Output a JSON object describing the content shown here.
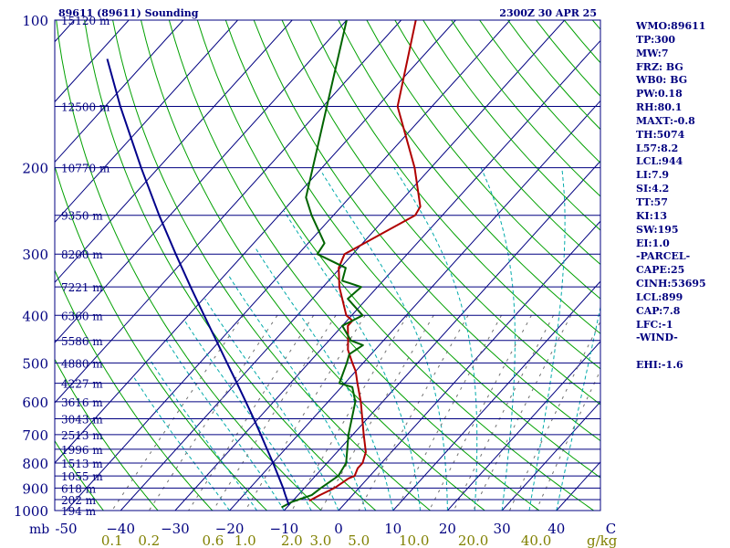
{
  "header": {
    "station_title": "89611 (89611) Sounding",
    "valid_time": "2300Z 30 APR 25"
  },
  "axes": {
    "p_unit": "mb",
    "mixing_ratio_unit": "g/kg"
  },
  "chart_data": {
    "type": "line",
    "diagram": "skew-t log-p",
    "grid": true,
    "pressure_range_mb": [
      100,
      1000
    ],
    "temperature_range_c": [
      -50,
      50
    ],
    "pressure_ticks": [
      {
        "p": 100,
        "label": "100"
      },
      {
        "p": 200,
        "label": "200"
      },
      {
        "p": 300,
        "label": "300"
      },
      {
        "p": 400,
        "label": "400"
      },
      {
        "p": 500,
        "label": "500"
      },
      {
        "p": 600,
        "label": "600"
      },
      {
        "p": 700,
        "label": "700"
      },
      {
        "p": 800,
        "label": "800"
      },
      {
        "p": 900,
        "label": "900"
      },
      {
        "p": 1000,
        "label": "1000"
      }
    ],
    "temperature_ticks": [
      {
        "t": -50,
        "label": "-50"
      },
      {
        "t": -40,
        "label": "−40"
      },
      {
        "t": -30,
        "label": "−30"
      },
      {
        "t": -20,
        "label": "−20"
      },
      {
        "t": -10,
        "label": "−10"
      },
      {
        "t": 0,
        "label": "0"
      },
      {
        "t": 10,
        "label": "10"
      },
      {
        "t": 20,
        "label": "20"
      },
      {
        "t": 30,
        "label": "30"
      },
      {
        "t": 40,
        "label": "40"
      },
      {
        "t": 50,
        "label": "C"
      }
    ],
    "mixing_ratio_ticks": [
      {
        "w": 0.1,
        "label": "0.1"
      },
      {
        "w": 0.2,
        "label": "0.2"
      },
      {
        "w": 0.6,
        "label": "0.6"
      },
      {
        "w": 1.0,
        "label": "1.0"
      },
      {
        "w": 2.0,
        "label": "2.0"
      },
      {
        "w": 3.0,
        "label": "3.0"
      },
      {
        "w": 5.0,
        "label": "5.0"
      },
      {
        "w": 10.0,
        "label": "10.0"
      },
      {
        "w": 20.0,
        "label": "20.0"
      },
      {
        "w": 40.0,
        "label": "40.0"
      }
    ],
    "height_labels": [
      {
        "p": 100,
        "label": "15120 m"
      },
      {
        "p": 150,
        "label": "12500 m"
      },
      {
        "p": 200,
        "label": "10770 m"
      },
      {
        "p": 250,
        "label": "9350 m"
      },
      {
        "p": 300,
        "label": "8200 m"
      },
      {
        "p": 350,
        "label": "7221 m"
      },
      {
        "p": 400,
        "label": "6360 m"
      },
      {
        "p": 450,
        "label": "5586 m"
      },
      {
        "p": 500,
        "label": "4880 m"
      },
      {
        "p": 550,
        "label": "4227 m"
      },
      {
        "p": 600,
        "label": "3616 m"
      },
      {
        "p": 650,
        "label": "3043 m"
      },
      {
        "p": 700,
        "label": "2513 m"
      },
      {
        "p": 750,
        "label": "1996 m"
      },
      {
        "p": 800,
        "label": "1513 m"
      },
      {
        "p": 850,
        "label": "1055 m"
      },
      {
        "p": 900,
        "label": "618 m"
      },
      {
        "p": 950,
        "label": "202 m"
      },
      {
        "p": 1000,
        "label": "194 m"
      }
    ],
    "series": [
      {
        "key": "temperature",
        "color": "#b00000",
        "points": [
          {
            "p": 955,
            "t": -7.0
          },
          {
            "p": 930,
            "t": -6.0
          },
          {
            "p": 900,
            "t": -4.5
          },
          {
            "p": 860,
            "t": -3.5
          },
          {
            "p": 850,
            "t": -2.8
          },
          {
            "p": 820,
            "t": -3.5
          },
          {
            "p": 800,
            "t": -3.5
          },
          {
            "p": 760,
            "t": -4.7
          },
          {
            "p": 700,
            "t": -8.0
          },
          {
            "p": 600,
            "t": -14.0
          },
          {
            "p": 550,
            "t": -17.7
          },
          {
            "p": 520,
            "t": -20.0
          },
          {
            "p": 500,
            "t": -22.0
          },
          {
            "p": 470,
            "t": -25.0
          },
          {
            "p": 450,
            "t": -26.5
          },
          {
            "p": 420,
            "t": -29.0
          },
          {
            "p": 410,
            "t": -29.0
          },
          {
            "p": 400,
            "t": -31.0
          },
          {
            "p": 350,
            "t": -37.0
          },
          {
            "p": 320,
            "t": -40.3
          },
          {
            "p": 300,
            "t": -41.5
          },
          {
            "p": 250,
            "t": -35.0
          },
          {
            "p": 240,
            "t": -35.5
          },
          {
            "p": 200,
            "t": -43.0
          },
          {
            "p": 150,
            "t": -56.3
          },
          {
            "p": 100,
            "t": -67.3
          }
        ]
      },
      {
        "key": "dewpoint",
        "color": "#006400",
        "points": [
          {
            "p": 985,
            "t": -11.0
          },
          {
            "p": 960,
            "t": -10.0
          },
          {
            "p": 930,
            "t": -7.5
          },
          {
            "p": 900,
            "t": -7.0
          },
          {
            "p": 850,
            "t": -5.8
          },
          {
            "p": 800,
            "t": -6.5
          },
          {
            "p": 700,
            "t": -10.8
          },
          {
            "p": 600,
            "t": -15.0
          },
          {
            "p": 560,
            "t": -18.0
          },
          {
            "p": 550,
            "t": -21.0
          },
          {
            "p": 500,
            "t": -23.0
          },
          {
            "p": 480,
            "t": -24.0
          },
          {
            "p": 460,
            "t": -23.0
          },
          {
            "p": 450,
            "t": -26.0
          },
          {
            "p": 420,
            "t": -30.0
          },
          {
            "p": 400,
            "t": -28.0
          },
          {
            "p": 370,
            "t": -33.5
          },
          {
            "p": 350,
            "t": -33.0
          },
          {
            "p": 340,
            "t": -37.5
          },
          {
            "p": 320,
            "t": -39.0
          },
          {
            "p": 300,
            "t": -46.5
          },
          {
            "p": 285,
            "t": -47.0
          },
          {
            "p": 250,
            "t": -54.0
          },
          {
            "p": 230,
            "t": -58.0
          },
          {
            "p": 100,
            "t": -80.0
          }
        ]
      },
      {
        "key": "parcel",
        "color": "#00008b",
        "points": [
          {
            "p": 975,
            "t": -10.0
          },
          {
            "p": 925,
            "t": -12.6
          },
          {
            "p": 900,
            "t": -13.9
          },
          {
            "p": 850,
            "t": -16.8
          },
          {
            "p": 800,
            "t": -19.9
          },
          {
            "p": 750,
            "t": -23.3
          },
          {
            "p": 700,
            "t": -26.9
          },
          {
            "p": 650,
            "t": -30.8
          },
          {
            "p": 600,
            "t": -35.1
          },
          {
            "p": 550,
            "t": -39.8
          },
          {
            "p": 500,
            "t": -45.0
          },
          {
            "p": 450,
            "t": -50.7
          },
          {
            "p": 400,
            "t": -57.1
          },
          {
            "p": 350,
            "t": -64.3
          },
          {
            "p": 300,
            "t": -72.5
          },
          {
            "p": 250,
            "t": -82.0
          },
          {
            "p": 200,
            "t": -93.2
          },
          {
            "p": 150,
            "t": -107.2
          },
          {
            "p": 120,
            "t": -117.5
          }
        ]
      }
    ]
  },
  "indices": [
    "WMO:89611",
    "TP:300",
    "MW:7",
    "FRZ: BG",
    "WB0: BG",
    "PW:0.18",
    "RH:80.1",
    "MAXT:-0.8",
    "TH:5074",
    "L57:8.2",
    "LCL:944",
    "LI:7.9",
    "SI:4.2",
    "TT:57",
    "KI:13",
    "SW:195",
    "EI:1.0",
    "-PARCEL-",
    "CAPE:25",
    "CINH:53695",
    "LCL:899",
    "CAP:7.8",
    "LFC:-1",
    "-WIND-",
    "",
    "EHI:-1.6"
  ],
  "colors": {
    "background": "#ffffff",
    "frame": "#000080",
    "isobar": "#000080",
    "isotherm": "#000080",
    "dry_adiabat": "#00a000",
    "moist_adiabat": "#00aaaa",
    "mixing_ratio": "#707070",
    "mixing_ratio_label": "#808000",
    "text": "#000080"
  }
}
